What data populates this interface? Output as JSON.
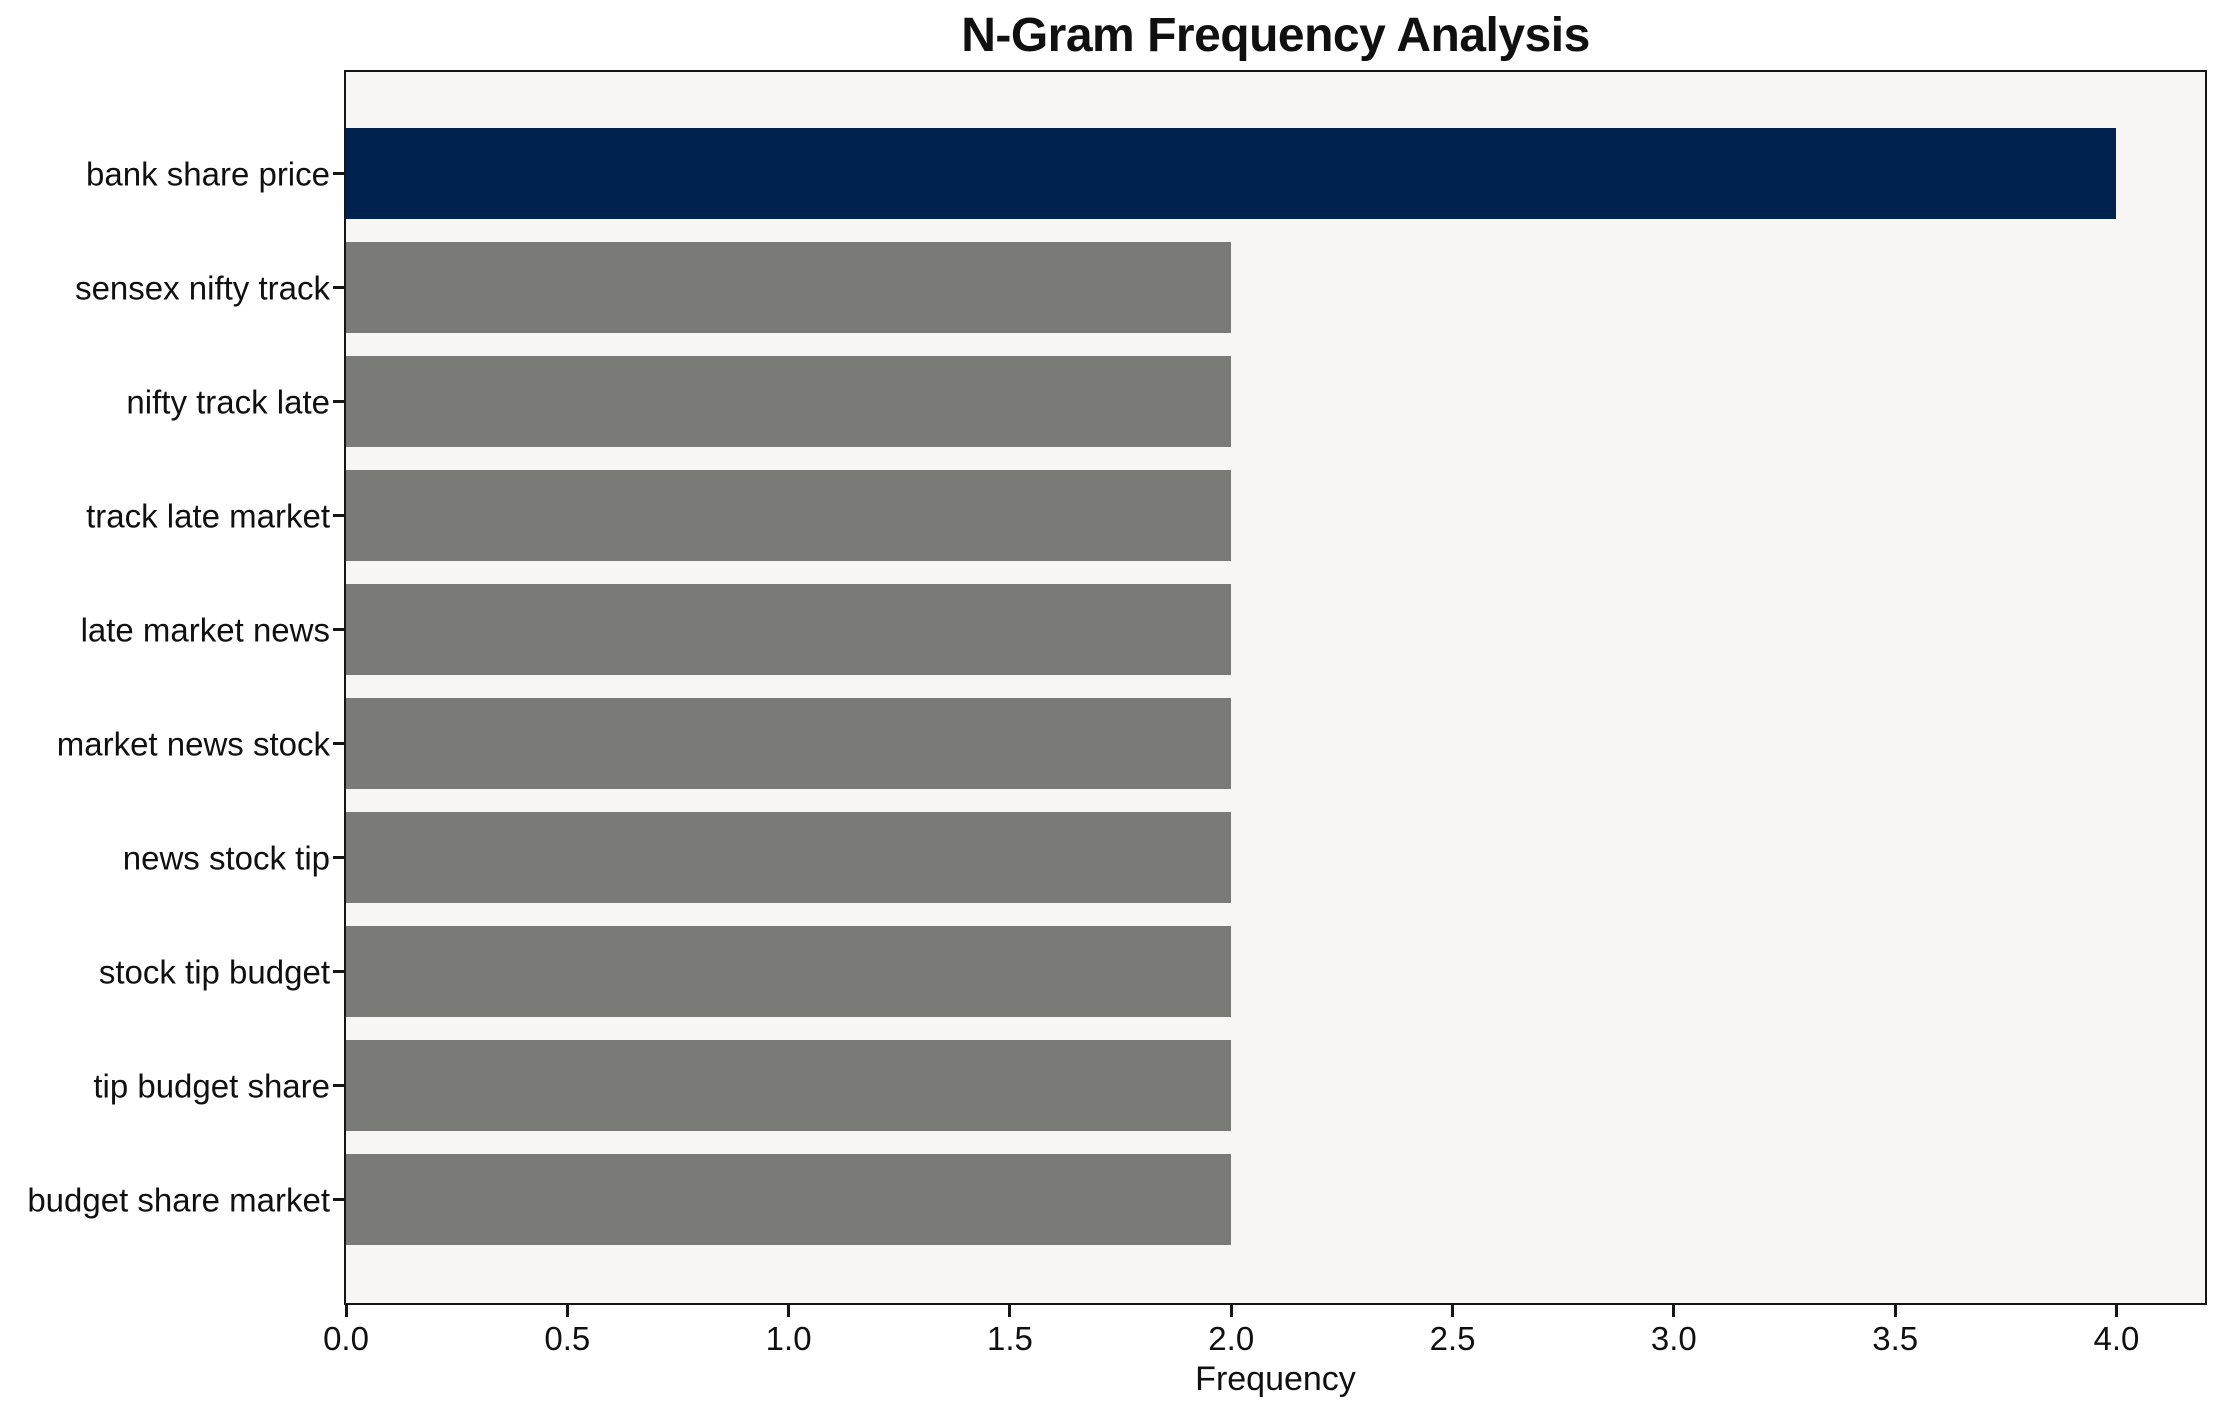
{
  "chart_data": {
    "type": "bar",
    "orientation": "horizontal",
    "title": "N-Gram Frequency Analysis",
    "xlabel": "Frequency",
    "ylabel": "",
    "categories": [
      "bank share price",
      "sensex nifty track",
      "nifty track late",
      "track late market",
      "late market news",
      "market news stock",
      "news stock tip",
      "stock tip budget",
      "tip budget share",
      "budget share market"
    ],
    "values": [
      4,
      2,
      2,
      2,
      2,
      2,
      2,
      2,
      2,
      2
    ],
    "bar_colors": [
      "#00224E",
      "#7A7A77",
      "#7A7A77",
      "#7A7A77",
      "#7A7A77",
      "#7A7A77",
      "#7A7A77",
      "#7A7A77",
      "#7A7A77",
      "#7A7A77"
    ],
    "xlim": [
      0,
      4.2
    ],
    "xticks": [
      0.0,
      0.5,
      1.0,
      1.5,
      2.0,
      2.5,
      3.0,
      3.5,
      4.0
    ],
    "xtick_labels": [
      "0.0",
      "0.5",
      "1.0",
      "1.5",
      "2.0",
      "2.5",
      "3.0",
      "3.5",
      "4.0"
    ],
    "grid": false,
    "legend": null,
    "colors": {
      "highlight_bar": "#00224E",
      "default_bar": "#7A7A77",
      "plot_background": "#F7F6F5",
      "figure_background": "#FFFFFF",
      "spine": "#151515",
      "text": "#101010"
    }
  }
}
